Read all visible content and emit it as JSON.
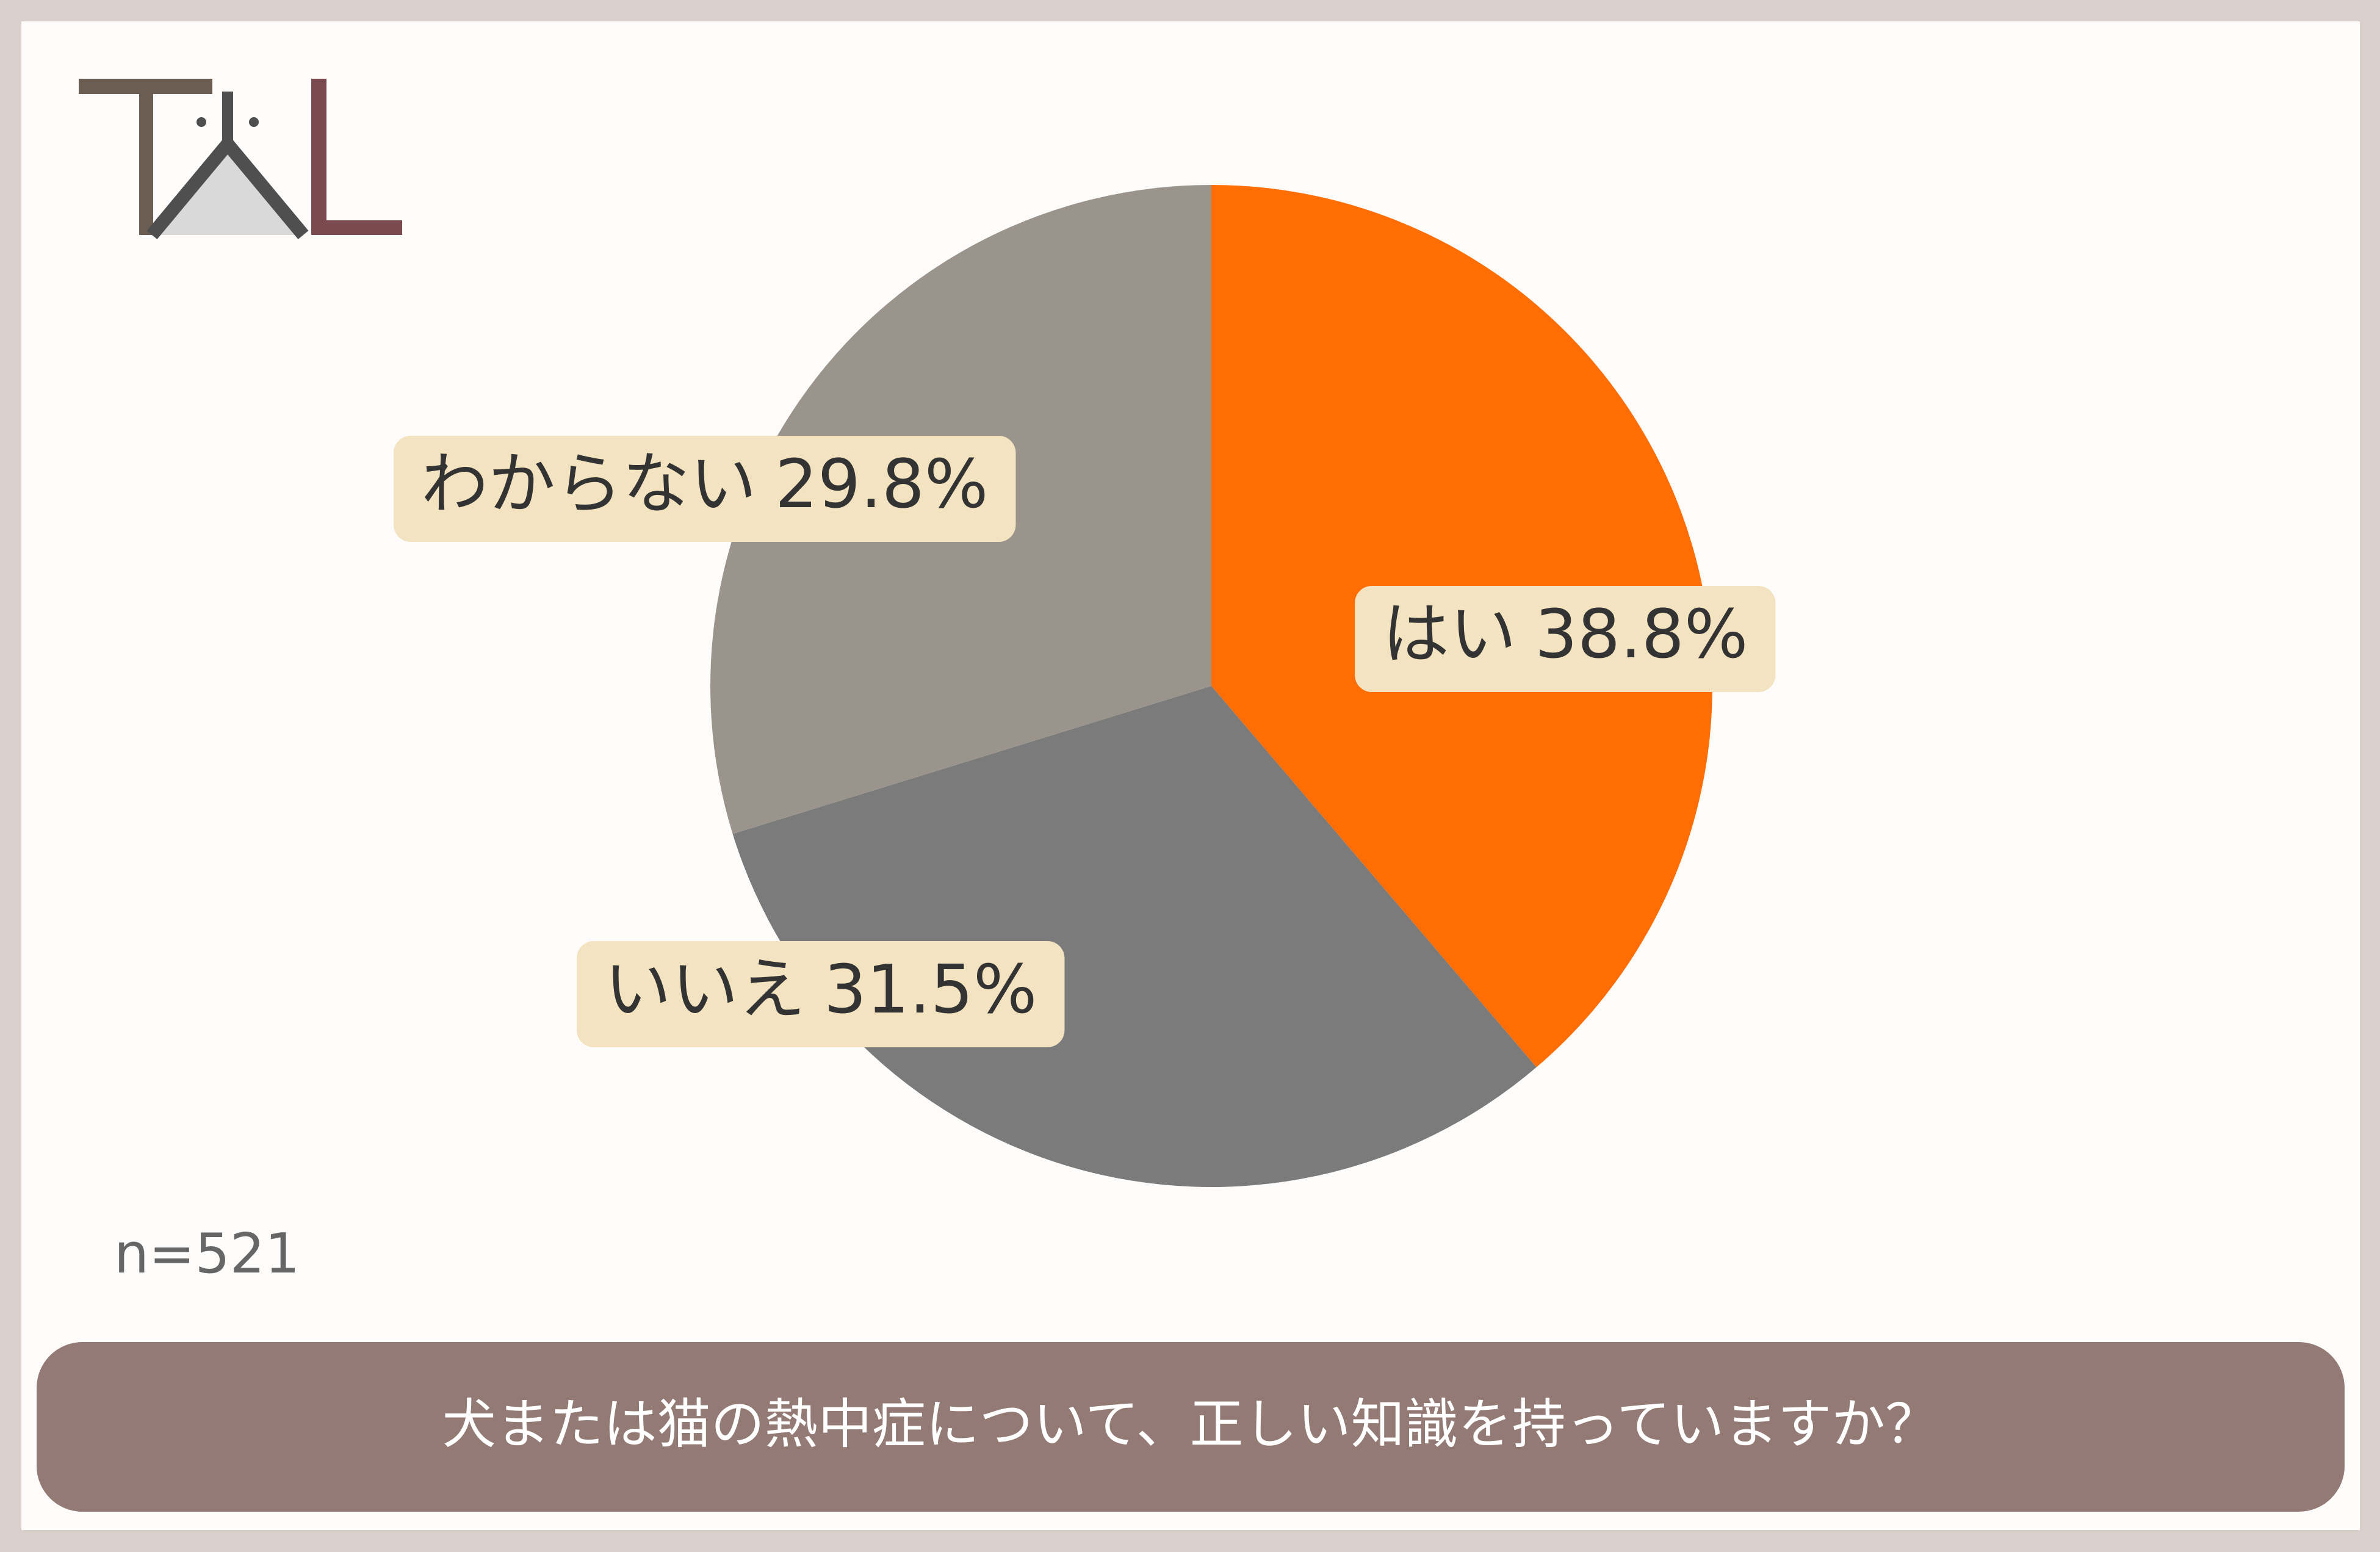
{
  "chart_data": {
    "type": "pie",
    "title": "犬または猫の熱中症について、正しい知識を持っていますか？",
    "note": "n=521",
    "categories": [
      "はい",
      "いいえ",
      "わからない"
    ],
    "values": [
      38.8,
      31.5,
      29.8
    ],
    "value_labels": [
      "38.8%",
      "31.5%",
      "29.8%"
    ],
    "colors": [
      "#ff6d03",
      "#7b7b7b",
      "#9a948c"
    ]
  }
}
